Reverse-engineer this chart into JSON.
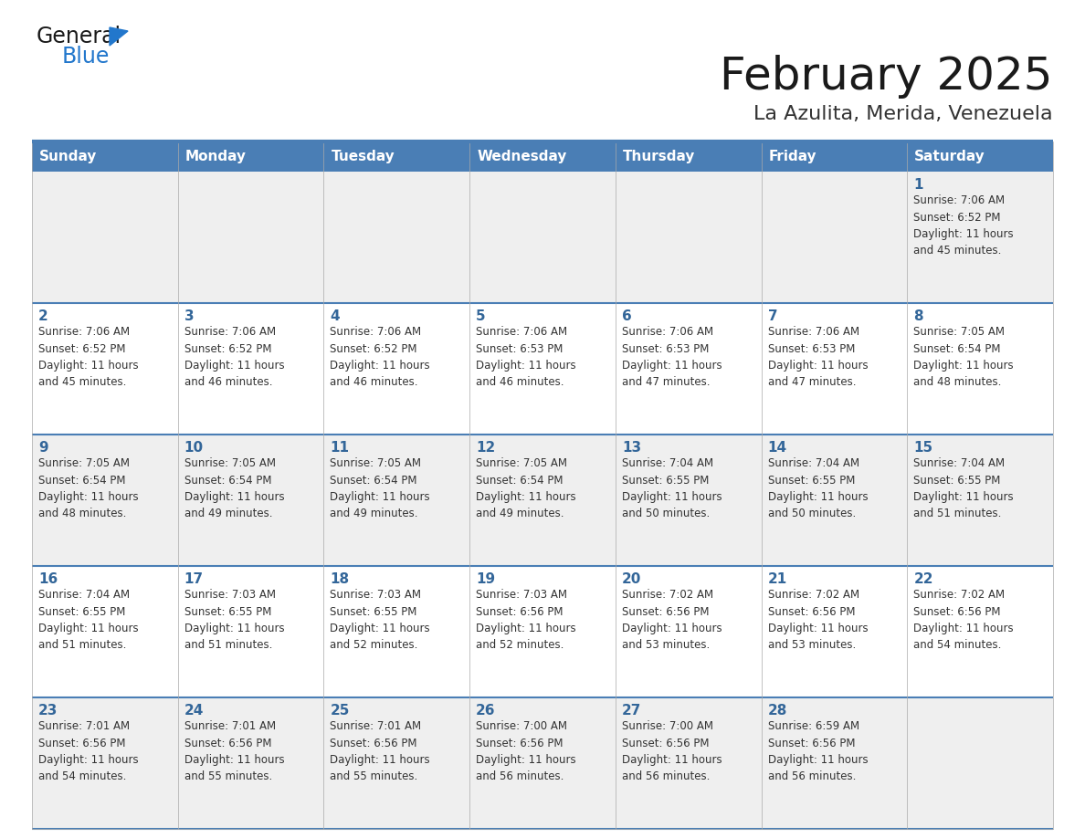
{
  "title": "February 2025",
  "subtitle": "La Azulita, Merida, Venezuela",
  "days_of_week": [
    "Sunday",
    "Monday",
    "Tuesday",
    "Wednesday",
    "Thursday",
    "Friday",
    "Saturday"
  ],
  "header_bg_color": "#4a7eb5",
  "header_text_color": "#ffffff",
  "cell_bg_row0": "#efefef",
  "cell_bg_row1": "#ffffff",
  "cell_bg_row2": "#efefef",
  "cell_bg_row3": "#ffffff",
  "cell_bg_row4": "#efefef",
  "day_number_color": "#336699",
  "info_text_color": "#333333",
  "border_color": "#4a7eb5",
  "grid_line_color": "#aaaaaa",
  "logo_general_color": "#1a1a1a",
  "logo_blue_color": "#2277cc",
  "title_color": "#1a1a1a",
  "subtitle_color": "#333333",
  "calendar_data": [
    [
      null,
      null,
      null,
      null,
      null,
      null,
      1
    ],
    [
      2,
      3,
      4,
      5,
      6,
      7,
      8
    ],
    [
      9,
      10,
      11,
      12,
      13,
      14,
      15
    ],
    [
      16,
      17,
      18,
      19,
      20,
      21,
      22
    ],
    [
      23,
      24,
      25,
      26,
      27,
      28,
      null
    ]
  ],
  "sunrise_data": {
    "1": "Sunrise: 7:06 AM\nSunset: 6:52 PM\nDaylight: 11 hours\nand 45 minutes.",
    "2": "Sunrise: 7:06 AM\nSunset: 6:52 PM\nDaylight: 11 hours\nand 45 minutes.",
    "3": "Sunrise: 7:06 AM\nSunset: 6:52 PM\nDaylight: 11 hours\nand 46 minutes.",
    "4": "Sunrise: 7:06 AM\nSunset: 6:52 PM\nDaylight: 11 hours\nand 46 minutes.",
    "5": "Sunrise: 7:06 AM\nSunset: 6:53 PM\nDaylight: 11 hours\nand 46 minutes.",
    "6": "Sunrise: 7:06 AM\nSunset: 6:53 PM\nDaylight: 11 hours\nand 47 minutes.",
    "7": "Sunrise: 7:06 AM\nSunset: 6:53 PM\nDaylight: 11 hours\nand 47 minutes.",
    "8": "Sunrise: 7:05 AM\nSunset: 6:54 PM\nDaylight: 11 hours\nand 48 minutes.",
    "9": "Sunrise: 7:05 AM\nSunset: 6:54 PM\nDaylight: 11 hours\nand 48 minutes.",
    "10": "Sunrise: 7:05 AM\nSunset: 6:54 PM\nDaylight: 11 hours\nand 49 minutes.",
    "11": "Sunrise: 7:05 AM\nSunset: 6:54 PM\nDaylight: 11 hours\nand 49 minutes.",
    "12": "Sunrise: 7:05 AM\nSunset: 6:54 PM\nDaylight: 11 hours\nand 49 minutes.",
    "13": "Sunrise: 7:04 AM\nSunset: 6:55 PM\nDaylight: 11 hours\nand 50 minutes.",
    "14": "Sunrise: 7:04 AM\nSunset: 6:55 PM\nDaylight: 11 hours\nand 50 minutes.",
    "15": "Sunrise: 7:04 AM\nSunset: 6:55 PM\nDaylight: 11 hours\nand 51 minutes.",
    "16": "Sunrise: 7:04 AM\nSunset: 6:55 PM\nDaylight: 11 hours\nand 51 minutes.",
    "17": "Sunrise: 7:03 AM\nSunset: 6:55 PM\nDaylight: 11 hours\nand 51 minutes.",
    "18": "Sunrise: 7:03 AM\nSunset: 6:55 PM\nDaylight: 11 hours\nand 52 minutes.",
    "19": "Sunrise: 7:03 AM\nSunset: 6:56 PM\nDaylight: 11 hours\nand 52 minutes.",
    "20": "Sunrise: 7:02 AM\nSunset: 6:56 PM\nDaylight: 11 hours\nand 53 minutes.",
    "21": "Sunrise: 7:02 AM\nSunset: 6:56 PM\nDaylight: 11 hours\nand 53 minutes.",
    "22": "Sunrise: 7:02 AM\nSunset: 6:56 PM\nDaylight: 11 hours\nand 54 minutes.",
    "23": "Sunrise: 7:01 AM\nSunset: 6:56 PM\nDaylight: 11 hours\nand 54 minutes.",
    "24": "Sunrise: 7:01 AM\nSunset: 6:56 PM\nDaylight: 11 hours\nand 55 minutes.",
    "25": "Sunrise: 7:01 AM\nSunset: 6:56 PM\nDaylight: 11 hours\nand 55 minutes.",
    "26": "Sunrise: 7:00 AM\nSunset: 6:56 PM\nDaylight: 11 hours\nand 56 minutes.",
    "27": "Sunrise: 7:00 AM\nSunset: 6:56 PM\nDaylight: 11 hours\nand 56 minutes.",
    "28": "Sunrise: 6:59 AM\nSunset: 6:56 PM\nDaylight: 11 hours\nand 56 minutes."
  }
}
